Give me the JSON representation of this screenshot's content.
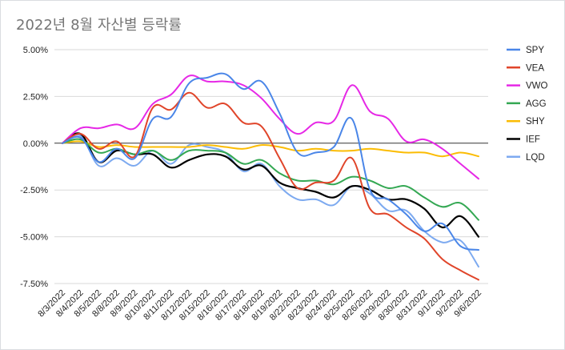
{
  "chart_data": {
    "type": "line",
    "title": "2022년 8월 자산별 등락률",
    "xlabel": "",
    "ylabel": "",
    "ylim": [
      -7.5,
      5.0
    ],
    "yticks": [
      5.0,
      2.5,
      0.0,
      -2.5,
      -5.0,
      -7.5
    ],
    "ytick_labels": [
      "5.00%",
      "2.50%",
      "0.00%",
      "-2.50%",
      "-5.00%",
      "-7.50%"
    ],
    "grid": true,
    "legend_position": "right",
    "categories": [
      "8/3/2022",
      "8/4/2022",
      "8/5/2022",
      "8/8/2022",
      "8/9/2022",
      "8/10/2022",
      "8/11/2022",
      "8/12/2022",
      "8/15/2022",
      "8/16/2022",
      "8/17/2022",
      "8/18/2022",
      "8/19/2022",
      "8/22/2022",
      "8/23/2022",
      "8/24/2022",
      "8/25/2022",
      "8/26/2022",
      "8/29/2022",
      "8/30/2022",
      "8/31/2022",
      "9/1/2022",
      "9/2/2022",
      "9/6/2022"
    ],
    "series": [
      {
        "name": "SPY",
        "color": "#4a86e8",
        "values": [
          0.0,
          0.3,
          -1.0,
          -0.3,
          -0.8,
          1.3,
          1.4,
          3.2,
          3.5,
          3.7,
          2.9,
          3.3,
          1.6,
          -0.5,
          -0.5,
          -0.2,
          1.3,
          -2.5,
          -3.0,
          -3.8,
          -4.7,
          -4.3,
          -5.5,
          -5.7
        ]
      },
      {
        "name": "VEA",
        "color": "#e0452a",
        "values": [
          0.0,
          0.5,
          -0.3,
          0.1,
          -0.7,
          1.9,
          1.8,
          2.7,
          1.9,
          2.1,
          1.1,
          0.9,
          -0.8,
          -2.4,
          -2.1,
          -2.0,
          -0.8,
          -3.5,
          -3.8,
          -4.5,
          -5.1,
          -6.2,
          -6.8,
          -7.3
        ]
      },
      {
        "name": "VWO",
        "color": "#e628e6",
        "values": [
          0.0,
          0.8,
          0.8,
          1.0,
          0.8,
          2.1,
          2.6,
          3.6,
          3.3,
          3.3,
          3.1,
          2.4,
          1.3,
          0.5,
          1.1,
          1.2,
          3.1,
          1.7,
          1.3,
          0.1,
          0.2,
          -0.3,
          -1.1,
          -1.9
        ]
      },
      {
        "name": "AGG",
        "color": "#34a853",
        "values": [
          0.0,
          0.2,
          -0.5,
          -0.3,
          -0.6,
          -0.4,
          -0.9,
          -0.4,
          -0.4,
          -0.5,
          -1.1,
          -0.9,
          -1.6,
          -2.0,
          -2.0,
          -2.2,
          -1.8,
          -2.0,
          -2.4,
          -2.3,
          -2.9,
          -3.4,
          -3.2,
          -4.1
        ]
      },
      {
        "name": "SHY",
        "color": "#fbbc04",
        "values": [
          0.0,
          0.1,
          -0.2,
          -0.1,
          -0.2,
          -0.2,
          -0.2,
          -0.2,
          -0.1,
          -0.2,
          -0.3,
          -0.1,
          -0.2,
          -0.4,
          -0.3,
          -0.4,
          -0.4,
          -0.3,
          -0.4,
          -0.5,
          -0.5,
          -0.7,
          -0.5,
          -0.7
        ]
      },
      {
        "name": "IEF",
        "color": "#000000",
        "values": [
          0.0,
          0.5,
          -1.0,
          -0.4,
          -0.6,
          -0.6,
          -1.3,
          -0.9,
          -0.6,
          -0.7,
          -1.4,
          -1.2,
          -2.1,
          -2.4,
          -2.6,
          -2.9,
          -2.3,
          -2.5,
          -3.0,
          -3.0,
          -3.5,
          -4.5,
          -3.9,
          -5.0
        ]
      },
      {
        "name": "LQD",
        "color": "#7daaf0",
        "values": [
          0.0,
          0.4,
          -1.2,
          -0.8,
          -1.2,
          -0.4,
          -1.1,
          -0.1,
          -0.2,
          -0.5,
          -1.5,
          -1.1,
          -2.3,
          -3.0,
          -3.0,
          -3.3,
          -2.3,
          -2.7,
          -3.6,
          -3.6,
          -4.7,
          -5.3,
          -5.2,
          -6.6
        ]
      }
    ]
  }
}
